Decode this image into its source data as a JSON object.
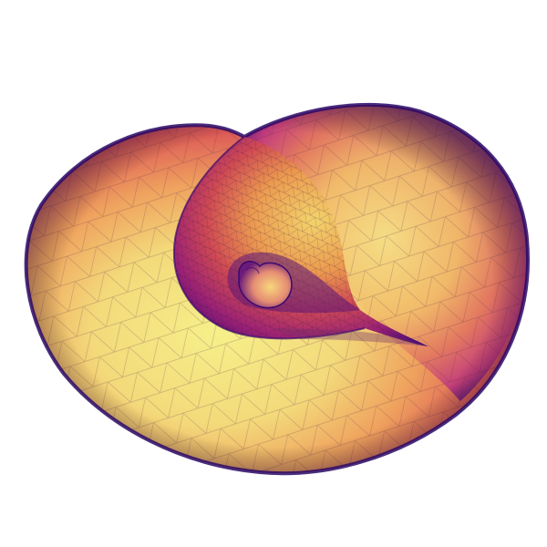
{
  "figure": {
    "kind": "3D triangulated surface render (self-intersecting torus-like shell)",
    "colormap": [
      "#0d0887",
      "#6a00a8",
      "#b12a90",
      "#e16462",
      "#fca636",
      "#f0f921"
    ],
    "background": "#ffffff",
    "wireframe_visible": true,
    "text_labels": []
  }
}
